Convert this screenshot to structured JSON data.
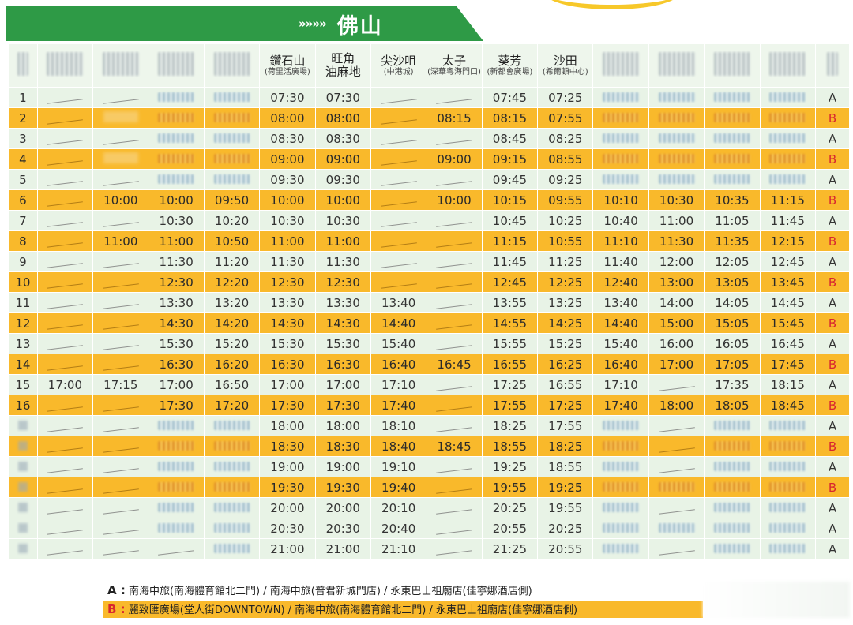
{
  "header": {
    "arrows": "»»»»",
    "destination": "佛山"
  },
  "columns": [
    {
      "key": "idx",
      "blurred": true
    },
    {
      "key": "s1",
      "blurred": true
    },
    {
      "key": "s2",
      "blurred": true
    },
    {
      "key": "s3",
      "blurred": true
    },
    {
      "key": "s4",
      "blurred": true
    },
    {
      "key": "diamond_hill",
      "main": "鑽石山",
      "sub": "(荷里活廣場)"
    },
    {
      "key": "mong_kok",
      "main": "旺角",
      "sub": "油麻地",
      "sub_style": "main"
    },
    {
      "key": "tsim_sha_tsui",
      "main": "尖沙咀",
      "sub": "(中港城)"
    },
    {
      "key": "prince_edward",
      "main": "太子",
      "sub": "(深華粵海門口)"
    },
    {
      "key": "kwai_fong",
      "main": "葵芳",
      "sub": "(新都會廣場)"
    },
    {
      "key": "sha_tin",
      "main": "沙田",
      "sub": "(希爾頓中心)"
    },
    {
      "key": "s11",
      "blurred": true
    },
    {
      "key": "s12",
      "blurred": true
    },
    {
      "key": "s13",
      "blurred": true
    },
    {
      "key": "s14",
      "blurred": true
    },
    {
      "key": "type",
      "blurred": true
    }
  ],
  "rows": [
    {
      "n": "1",
      "t": [
        "-",
        "-",
        "",
        "",
        "07:30",
        "07:30",
        "-",
        "-",
        "07:45",
        "07:25",
        "",
        "",
        "",
        ""
      ],
      "type": "A"
    },
    {
      "n": "2",
      "t": [
        "-",
        "",
        "",
        "",
        "08:00",
        "08:00",
        "-",
        "08:15",
        "08:15",
        "07:55",
        "",
        "",
        "",
        ""
      ],
      "type": "B"
    },
    {
      "n": "3",
      "t": [
        "-",
        "-",
        "",
        "",
        "08:30",
        "08:30",
        "-",
        "-",
        "08:45",
        "08:25",
        "",
        "",
        "",
        ""
      ],
      "type": "A"
    },
    {
      "n": "4",
      "t": [
        "-",
        "",
        "",
        "",
        "09:00",
        "09:00",
        "-",
        "09:00",
        "09:15",
        "08:55",
        "",
        "",
        "",
        ""
      ],
      "type": "B"
    },
    {
      "n": "5",
      "t": [
        "-",
        "-",
        "",
        "",
        "09:30",
        "09:30",
        "-",
        "-",
        "09:45",
        "09:25",
        "",
        "",
        "",
        ""
      ],
      "type": "A"
    },
    {
      "n": "6",
      "t": [
        "-",
        "10:00",
        "10:00",
        "09:50",
        "10:00",
        "10:00",
        "-",
        "10:00",
        "10:15",
        "09:55",
        "10:10",
        "10:30",
        "10:35",
        "11:15"
      ],
      "type": "B"
    },
    {
      "n": "7",
      "t": [
        "-",
        "-",
        "10:30",
        "10:20",
        "10:30",
        "10:30",
        "-",
        "-",
        "10:45",
        "10:25",
        "10:40",
        "11:00",
        "11:05",
        "11:45"
      ],
      "type": "A"
    },
    {
      "n": "8",
      "t": [
        "-",
        "11:00",
        "11:00",
        "10:50",
        "11:00",
        "11:00",
        "-",
        "-",
        "11:15",
        "10:55",
        "11:10",
        "11:30",
        "11:35",
        "12:15"
      ],
      "type": "B"
    },
    {
      "n": "9",
      "t": [
        "-",
        "-",
        "11:30",
        "11:20",
        "11:30",
        "11:30",
        "-",
        "-",
        "11:45",
        "11:25",
        "11:40",
        "12:00",
        "12:05",
        "12:45"
      ],
      "type": "A"
    },
    {
      "n": "10",
      "t": [
        "-",
        "-",
        "12:30",
        "12:20",
        "12:30",
        "12:30",
        "-",
        "-",
        "12:45",
        "12:25",
        "12:40",
        "13:00",
        "13:05",
        "13:45"
      ],
      "type": "B"
    },
    {
      "n": "11",
      "t": [
        "-",
        "-",
        "13:30",
        "13:20",
        "13:30",
        "13:30",
        "13:40",
        "-",
        "13:55",
        "13:25",
        "13:40",
        "14:00",
        "14:05",
        "14:45"
      ],
      "type": "A"
    },
    {
      "n": "12",
      "t": [
        "-",
        "-",
        "14:30",
        "14:20",
        "14:30",
        "14:30",
        "14:40",
        "-",
        "14:55",
        "14:25",
        "14:40",
        "15:00",
        "15:05",
        "15:45"
      ],
      "type": "B"
    },
    {
      "n": "13",
      "t": [
        "-",
        "-",
        "15:30",
        "15:20",
        "15:30",
        "15:30",
        "15:40",
        "-",
        "15:55",
        "15:25",
        "15:40",
        "16:00",
        "16:05",
        "16:45"
      ],
      "type": "A"
    },
    {
      "n": "14",
      "t": [
        "-",
        "-",
        "16:30",
        "16:20",
        "16:30",
        "16:30",
        "16:40",
        "16:45",
        "16:55",
        "16:25",
        "16:40",
        "17:00",
        "17:05",
        "17:45"
      ],
      "type": "B"
    },
    {
      "n": "15",
      "t": [
        "17:00",
        "17:15",
        "17:00",
        "16:50",
        "17:00",
        "17:00",
        "17:10",
        "-",
        "17:25",
        "16:55",
        "17:10",
        "-",
        "17:35",
        "18:15"
      ],
      "type": "A"
    },
    {
      "n": "16",
      "t": [
        "-",
        "-",
        "17:30",
        "17:20",
        "17:30",
        "17:30",
        "17:40",
        "-",
        "17:55",
        "17:25",
        "17:40",
        "18:00",
        "18:05",
        "18:45"
      ],
      "type": "B"
    },
    {
      "n": "",
      "t": [
        "-",
        "-",
        "",
        "",
        "18:00",
        "18:00",
        "18:10",
        "-",
        "18:25",
        "17:55",
        "",
        "-",
        "",
        ""
      ],
      "type": "A"
    },
    {
      "n": "",
      "t": [
        "-",
        "-",
        "",
        "",
        "18:30",
        "18:30",
        "18:40",
        "18:45",
        "18:55",
        "18:25",
        "",
        "-",
        "",
        ""
      ],
      "type": "B"
    },
    {
      "n": "",
      "t": [
        "-",
        "-",
        "",
        "",
        "19:00",
        "19:00",
        "19:10",
        "-",
        "19:25",
        "18:55",
        "",
        "-",
        "",
        ""
      ],
      "type": "A"
    },
    {
      "n": "",
      "t": [
        "-",
        "-",
        "",
        "",
        "19:30",
        "19:30",
        "19:40",
        "-",
        "19:55",
        "19:25",
        "",
        "",
        "",
        ""
      ],
      "type": "B"
    },
    {
      "n": "",
      "t": [
        "-",
        "-",
        "",
        "",
        "20:00",
        "20:00",
        "20:10",
        "-",
        "20:25",
        "19:55",
        "",
        "-",
        "",
        ""
      ],
      "type": "A"
    },
    {
      "n": "",
      "t": [
        "-",
        "-",
        "",
        "",
        "20:30",
        "20:30",
        "20:40",
        "-",
        "20:55",
        "20:25",
        "",
        "",
        "",
        ""
      ],
      "type": "A"
    },
    {
      "n": "",
      "t": [
        "-",
        "-",
        "-",
        "",
        "21:00",
        "21:00",
        "21:10",
        "-",
        "21:25",
        "20:55",
        "",
        "-",
        "",
        ""
      ],
      "type": "A"
    }
  ],
  "notes": {
    "a_key": "A :",
    "a_text": "南海中旅(南海體育館北二門) / 南海中旅(普君新城門店) / 永東巴士祖廟店(佳寧娜酒店側)",
    "b_key": "B :",
    "b_text": "麗致匯廣場(堂人街DOWNTOWN) / 南海中旅(南海體育館北二門) / 永東巴士祖廟店(佳寧娜酒店側)"
  },
  "colors": {
    "header_green": "#2e9a46",
    "row_a": "#e8f3e6",
    "row_b": "#f9b92b",
    "type_b_text": "#d8262f"
  }
}
